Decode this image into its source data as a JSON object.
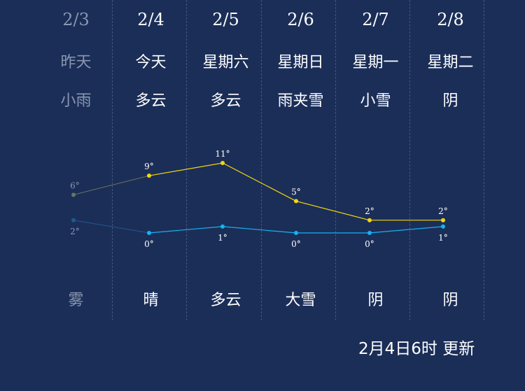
{
  "days": [
    {
      "date": "2/3",
      "weekday": "昨天",
      "day_condition": "小雨",
      "night_condition": "雾",
      "past": true
    },
    {
      "date": "2/4",
      "weekday": "今天",
      "day_condition": "多云",
      "night_condition": "晴",
      "past": false
    },
    {
      "date": "2/5",
      "weekday": "星期六",
      "day_condition": "多云",
      "night_condition": "多云",
      "past": false
    },
    {
      "date": "2/6",
      "weekday": "星期日",
      "day_condition": "雨夹雪",
      "night_condition": "大雪",
      "past": false
    },
    {
      "date": "2/7",
      "weekday": "星期一",
      "day_condition": "小雪",
      "night_condition": "阴",
      "past": false
    },
    {
      "date": "2/8",
      "weekday": "星期二",
      "day_condition": "阴",
      "night_condition": "阴",
      "past": false
    }
  ],
  "chart_data": {
    "type": "line",
    "categories": [
      "2/3",
      "2/4",
      "2/5",
      "2/6",
      "2/7",
      "2/8"
    ],
    "series": [
      {
        "values": [
          6,
          9,
          11,
          5,
          2,
          2
        ],
        "labels": [
          "6°",
          "9°",
          "11°",
          "5°",
          "2°",
          "2°"
        ],
        "color": "#f5d60a",
        "past_color": "#6a7560"
      },
      {
        "values": [
          2,
          0,
          1,
          0,
          0,
          1
        ],
        "labels": [
          "2°",
          "0°",
          "1°",
          "0°",
          "0°",
          "1°"
        ],
        "color": "#17b2ee",
        "past_color": "#1e5a8c"
      }
    ]
  },
  "updated_text": "2月4日6时 更新",
  "colors": {
    "background": "#1b2e58",
    "high_line": "#f5d60a",
    "low_line": "#17b2ee",
    "past_text": "#8a97b0"
  }
}
